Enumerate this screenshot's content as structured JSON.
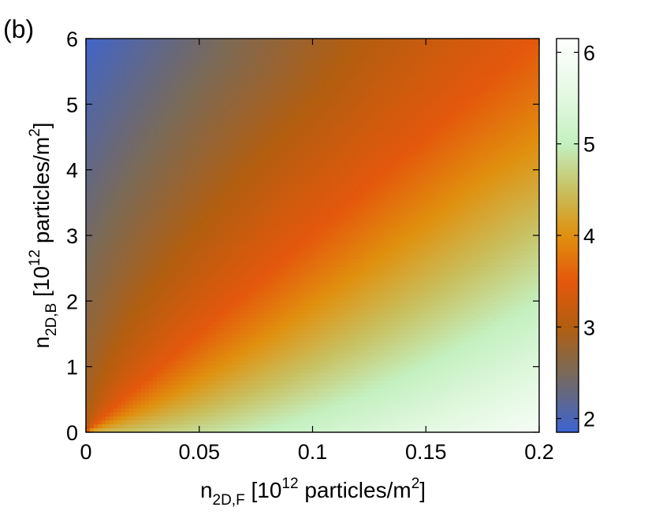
{
  "panel_label": "(b)",
  "chart_data": {
    "type": "heatmap",
    "x": {
      "min": 0,
      "max": 0.2,
      "ticks": [
        "0",
        "0.05",
        "0.1",
        "0.15",
        "0.2"
      ],
      "tick_values": [
        0,
        0.05,
        0.1,
        0.15,
        0.2
      ]
    },
    "y": {
      "min": 0,
      "max": 6,
      "ticks": [
        "0",
        "1",
        "2",
        "3",
        "4",
        "5",
        "6"
      ],
      "tick_values": [
        0,
        1,
        2,
        3,
        4,
        5,
        6
      ]
    },
    "xlabel": {
      "main": "n",
      "sub": "2D,F",
      "pre": " [10",
      "sup1": "12",
      "mid": " particles/m",
      "sup2": "2",
      "post": "]"
    },
    "ylabel": {
      "main": "n",
      "sub": "2D,B",
      "pre": " [10",
      "sup1": "12",
      "mid": " particles/m",
      "sup2": "2",
      "post": "]"
    },
    "colorbar": {
      "min": 1.85,
      "max": 6.15,
      "ticks": [
        "2",
        "3",
        "4",
        "5",
        "6"
      ],
      "tick_values": [
        2,
        3,
        4,
        5,
        6
      ]
    },
    "colormap": [
      {
        "v": 1.85,
        "color": "#3c64d2"
      },
      {
        "v": 2.5,
        "color": "#7a6a58"
      },
      {
        "v": 3.0,
        "color": "#b25e10"
      },
      {
        "v": 3.5,
        "color": "#e4580c"
      },
      {
        "v": 4.0,
        "color": "#e0900e"
      },
      {
        "v": 4.5,
        "color": "#c8c060"
      },
      {
        "v": 5.0,
        "color": "#c4f0c0"
      },
      {
        "v": 5.5,
        "color": "#e2f8e0"
      },
      {
        "v": 6.15,
        "color": "#ffffff"
      }
    ],
    "field": {
      "description_of_shape": "ridge of value ~3.5 along y ≈ 30·x; low values toward top-left corner; high values toward bottom-right corner",
      "ridge_slope": 30,
      "ridge_value": 3.5,
      "top_left_value": 1.9,
      "bottom_right_value": 6.1
    },
    "grid": false,
    "legend": "none"
  }
}
